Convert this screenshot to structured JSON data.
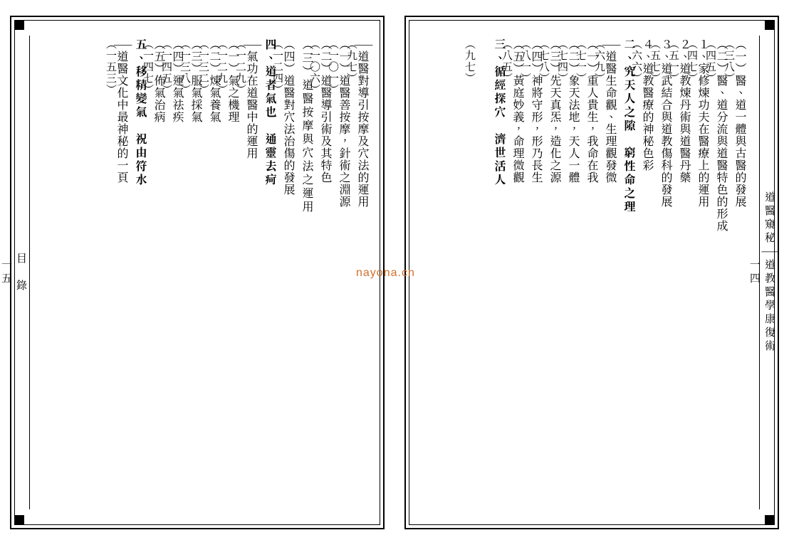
{
  "watermark": "nayona.cn",
  "right_page": {
    "side_top": "道醫窺秘——道教醫學康復術",
    "side_bottom": "一四",
    "entries": [
      {
        "text": "（一）醫、道一體與古醫的發展",
        "pg": "（三八）",
        "indent": 2
      },
      {
        "text": "（二）醫、道分流與道醫特色的形成",
        "pg": "（四五）",
        "indent": 2
      },
      {
        "text": "１、家修煉功夫在醫療上的運用",
        "pg": "（四七）",
        "indent": 3
      },
      {
        "text": "２、道教煉丹術與道醫丹藥",
        "pg": "（五一）",
        "indent": 3
      },
      {
        "text": "３、道武結合與道教傷科的發展",
        "pg": "（五七）",
        "indent": 3
      },
      {
        "text": "４、道教醫療的神秘色彩",
        "pg": "（六六）",
        "indent": 3
      },
      {
        "text": "二、究天人之隙　窮性命之理",
        "pg": "",
        "indent": 0,
        "chapter": true,
        "head": true
      },
      {
        "text": "——道醫生命觀、生理觀發微",
        "pg": "（六九）",
        "indent": 2
      },
      {
        "text": "（一）重人貴生，我命在我",
        "pg": "（七一）",
        "indent": 2
      },
      {
        "text": "（二）象天法地，天人一體",
        "pg": "（七四）",
        "indent": 2
      },
      {
        "text": "（三）先天真炁，造化之源",
        "pg": "（七八）",
        "indent": 2
      },
      {
        "text": "（四）神將守形，形乃長生",
        "pg": "（八一）",
        "indent": 2
      },
      {
        "text": "（五）黃庭妙義，命理微觀",
        "pg": "（八五）",
        "indent": 2
      },
      {
        "text": "三、循經探穴　濟世活人",
        "pg": "",
        "indent": 0,
        "chapter": true,
        "head": true
      },
      {
        "text": "",
        "pg": "（九七）",
        "indent": 2,
        "dotsonly": true
      }
    ]
  },
  "left_page": {
    "side_top": "目　錄",
    "side_bottom": "一五",
    "entries": [
      {
        "text": "——道醫對導引按摩及穴法的運用",
        "pg": "（九七）",
        "indent": 2
      },
      {
        "text": "（一）道醫善按摩，針術之淵源",
        "pg": "（一〇一）",
        "indent": 2
      },
      {
        "text": "（二）道醫導引術及其特色",
        "pg": "（一〇六）",
        "indent": 2
      },
      {
        "text": "（三）道醫按摩與穴法之運用",
        "pg": "",
        "indent": 2,
        "head": true
      },
      {
        "text": "（四）道醫對穴法治傷的發展",
        "pg": "（一二四）",
        "indent": 2
      },
      {
        "text": "四、道者氣也　通靈去疴",
        "pg": "",
        "indent": 0,
        "chapter": true,
        "head": true
      },
      {
        "text": "——氣功在道醫中的運用",
        "pg": "（一二九）",
        "indent": 2
      },
      {
        "text": "（一）氣之機理",
        "pg": "（一二九）",
        "indent": 2
      },
      {
        "text": "（二）煉氣養氣",
        "pg": "（一三二）",
        "indent": 2
      },
      {
        "text": "（三）服氣採氣",
        "pg": "（一三八）",
        "indent": 2
      },
      {
        "text": "（四）運氣祛疾",
        "pg": "（一四五）",
        "indent": 2
      },
      {
        "text": "（五）佈氣治病",
        "pg": "（一四七）",
        "indent": 2
      },
      {
        "text": "五、移精變氣　祝由符水",
        "pg": "",
        "indent": 0,
        "chapter": true,
        "head": true
      },
      {
        "text": "——道醫文化中最神秘的一頁",
        "pg": "（一五三）",
        "indent": 2
      }
    ]
  }
}
